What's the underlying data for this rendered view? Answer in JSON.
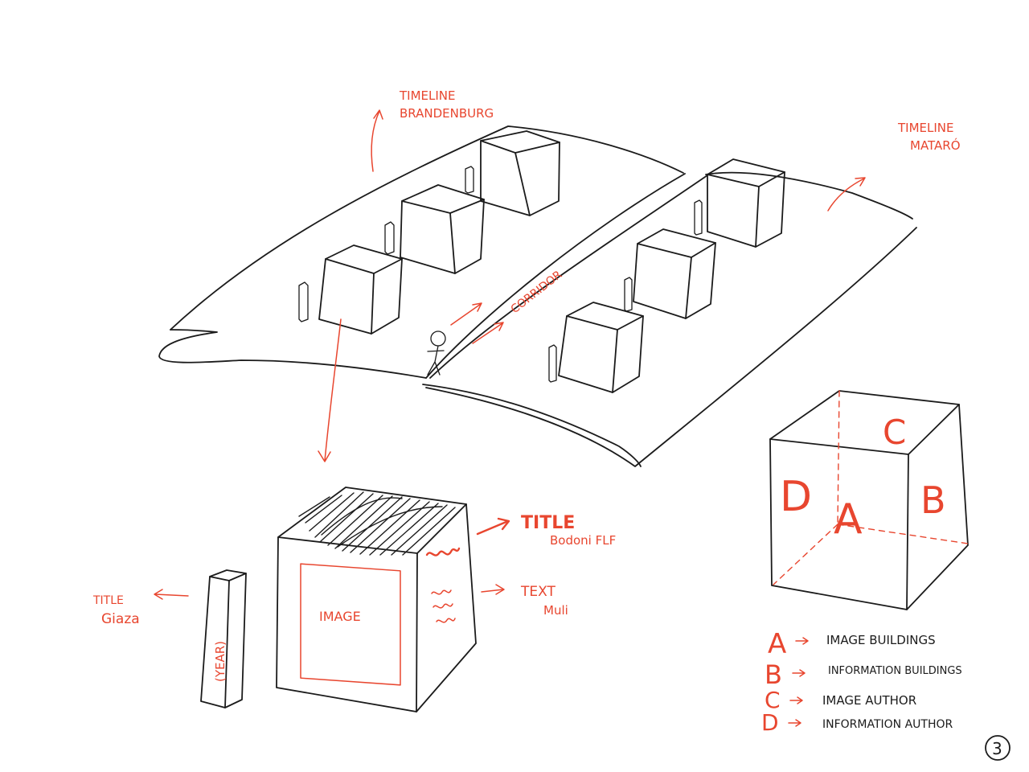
{
  "labels": {
    "timeline_brandenburg": [
      "TIMELINE",
      "BRANDENBURG"
    ],
    "timeline_mataro": [
      "TIMELINE",
      "MATARÓ"
    ],
    "corridor": "CORRIDOR",
    "image": "IMAGE",
    "year": "(YEAR)",
    "title_bodoni": {
      "title": "TITLE",
      "font": "Bodoni FLF"
    },
    "text_muli": {
      "title": "TEXT",
      "font": "Muli"
    },
    "title_giaza": {
      "title": "TITLE",
      "font": "Giaza"
    }
  },
  "cube_faces": {
    "top": "C",
    "left": "D",
    "front": "A",
    "right": "B"
  },
  "legend": [
    {
      "key": "A",
      "value": "IMAGE BUILDINGS"
    },
    {
      "key": "B",
      "value": "INFORMATION BUILDINGS"
    },
    {
      "key": "C",
      "value": "IMAGE AUTHOR"
    },
    {
      "key": "D",
      "value": "INFORMATION AUTHOR"
    }
  ],
  "page_number": "3",
  "colors": {
    "ink": "#1b1b1b",
    "accent": "#e8462f"
  }
}
